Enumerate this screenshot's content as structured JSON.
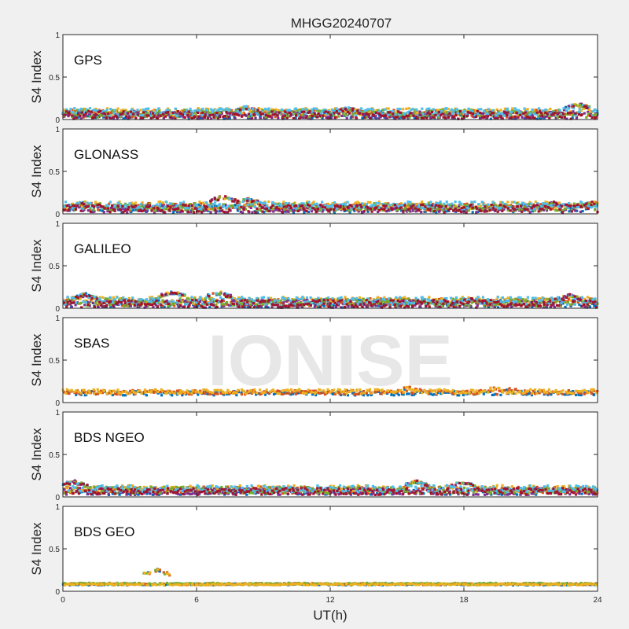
{
  "figure": {
    "title": "MHGG20240707",
    "xlabel": "UT(h)",
    "x_ticks": [
      "0",
      "6",
      "12",
      "18",
      "24"
    ],
    "watermark": "IONISE",
    "colors": {
      "background": "#f0f0f0",
      "axes_bg": "#ffffff",
      "axis": "#262626",
      "watermark": "#e6e6e6"
    }
  },
  "chart_data": [
    {
      "type": "scatter",
      "label": "GPS",
      "ylabel": "S4 Index",
      "xlim": [
        0,
        24
      ],
      "ylim": [
        0,
        1
      ],
      "y_ticks": [
        "0",
        "0.5",
        "1"
      ],
      "series_colors": [
        "#0072BD",
        "#D95319",
        "#EDB120",
        "#7E2F8E",
        "#77AC30",
        "#4DBEEE",
        "#A2142F"
      ],
      "baseline": 0.07,
      "spread": 0.045,
      "peaks": [
        [
          8.2,
          0.16
        ],
        [
          12.8,
          0.15
        ],
        [
          23.1,
          0.2
        ]
      ]
    },
    {
      "type": "scatter",
      "label": "GLONASS",
      "ylabel": "S4 Index",
      "xlim": [
        0,
        24
      ],
      "ylim": [
        0,
        1
      ],
      "y_ticks": [
        "0",
        "0.5",
        "1"
      ],
      "series_colors": [
        "#0072BD",
        "#D95319",
        "#EDB120",
        "#7E2F8E",
        "#77AC30",
        "#4DBEEE",
        "#A2142F"
      ],
      "baseline": 0.08,
      "spread": 0.045,
      "peaks": [
        [
          1.0,
          0.15
        ],
        [
          7.2,
          0.22
        ],
        [
          8.3,
          0.19
        ],
        [
          22.1,
          0.15
        ],
        [
          23.8,
          0.15
        ]
      ]
    },
    {
      "type": "scatter",
      "label": "GALILEO",
      "ylabel": "S4 Index",
      "xlim": [
        0,
        24
      ],
      "ylim": [
        0,
        1
      ],
      "y_ticks": [
        "0",
        "0.5",
        "1"
      ],
      "series_colors": [
        "#0072BD",
        "#D95319",
        "#EDB120",
        "#7E2F8E",
        "#77AC30",
        "#4DBEEE",
        "#A2142F"
      ],
      "baseline": 0.07,
      "spread": 0.045,
      "peaks": [
        [
          1.0,
          0.18
        ],
        [
          4.9,
          0.21
        ],
        [
          7.0,
          0.2
        ],
        [
          18.3,
          0.13
        ],
        [
          22.7,
          0.17
        ]
      ]
    },
    {
      "type": "scatter",
      "label": "SBAS",
      "ylabel": "S4 Index",
      "xlim": [
        0,
        24
      ],
      "ylim": [
        0,
        1
      ],
      "y_ticks": [
        "0",
        "0.5",
        "1"
      ],
      "series_colors": [
        "#0072BD",
        "#D95319",
        "#EDB120"
      ],
      "baseline": 0.12,
      "spread": 0.025,
      "peaks": [
        [
          15.5,
          0.2
        ],
        [
          19.5,
          0.2
        ],
        [
          20.1,
          0.18
        ]
      ]
    },
    {
      "type": "scatter",
      "label": "BDS NGEO",
      "ylabel": "S4 Index",
      "xlim": [
        0,
        24
      ],
      "ylim": [
        0,
        1
      ],
      "y_ticks": [
        "0",
        "0.5",
        "1"
      ],
      "series_colors": [
        "#0072BD",
        "#D95319",
        "#EDB120",
        "#7E2F8E",
        "#77AC30",
        "#4DBEEE",
        "#A2142F"
      ],
      "baseline": 0.08,
      "spread": 0.04,
      "peaks": [
        [
          0.5,
          0.2
        ],
        [
          15.9,
          0.2
        ],
        [
          17.9,
          0.19
        ]
      ]
    },
    {
      "type": "scatter",
      "label": "BDS GEO",
      "ylabel": "S4 Index",
      "xlim": [
        0,
        24
      ],
      "ylim": [
        0,
        1
      ],
      "y_ticks": [
        "0",
        "0.5",
        "1"
      ],
      "series_colors": [
        "#0072BD",
        "#D95319",
        "#77AC30",
        "#EDB120"
      ],
      "baseline": 0.085,
      "spread": 0.01,
      "peaks": [
        [
          4.2,
          0.27
        ],
        [
          19.8,
          0.11
        ]
      ]
    }
  ]
}
